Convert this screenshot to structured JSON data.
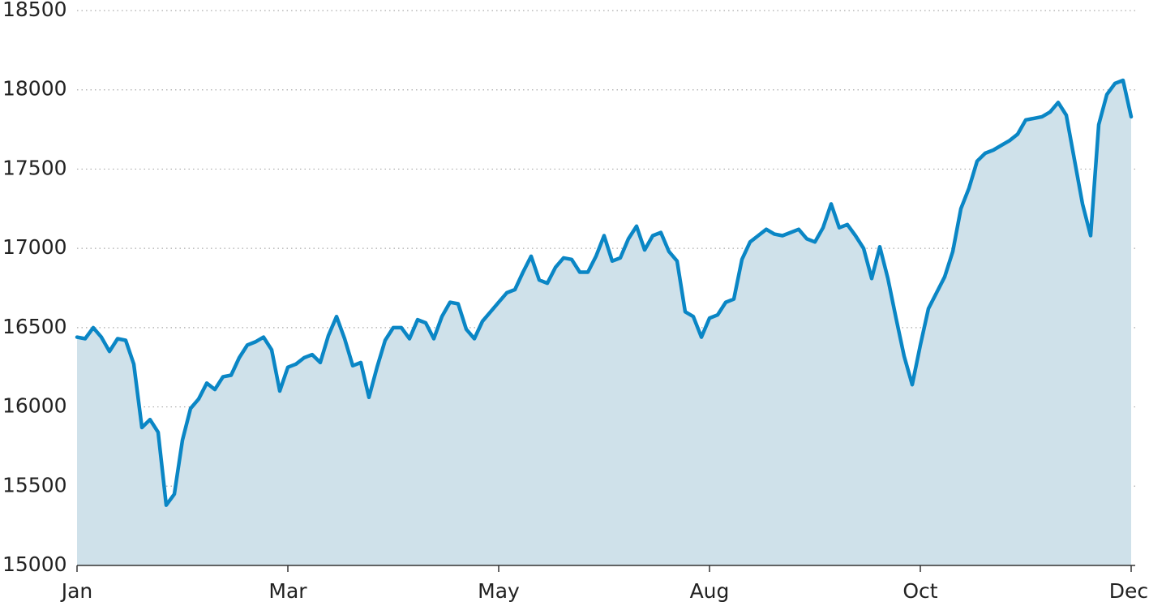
{
  "chart_data": {
    "type": "area",
    "categories": [
      "Jan",
      null,
      null,
      null,
      null,
      null,
      null,
      null,
      null,
      null,
      null,
      null,
      null,
      null,
      null,
      null,
      null,
      null,
      null,
      null,
      null,
      null,
      null,
      null,
      null,
      null,
      "Mar",
      null,
      null,
      null,
      null,
      null,
      null,
      null,
      null,
      null,
      null,
      null,
      null,
      null,
      null,
      null,
      null,
      null,
      null,
      null,
      null,
      null,
      null,
      null,
      null,
      null,
      "May",
      null,
      null,
      null,
      null,
      null,
      null,
      null,
      null,
      null,
      null,
      null,
      null,
      null,
      null,
      null,
      null,
      null,
      null,
      null,
      null,
      null,
      null,
      null,
      null,
      null,
      "Aug",
      null,
      null,
      null,
      null,
      null,
      null,
      null,
      null,
      null,
      null,
      null,
      null,
      null,
      null,
      null,
      null,
      null,
      null,
      null,
      null,
      null,
      null,
      null,
      null,
      null,
      "Oct",
      null,
      null,
      null,
      null,
      null,
      null,
      null,
      null,
      null,
      null,
      null,
      null,
      null,
      null,
      null,
      null,
      null,
      null,
      null,
      null,
      null,
      null,
      null,
      null,
      null,
      "Dec"
    ],
    "values": [
      16440,
      16430,
      16500,
      16440,
      16350,
      16430,
      16420,
      16270,
      15870,
      15920,
      15840,
      15380,
      15450,
      15790,
      15990,
      16050,
      16150,
      16110,
      16190,
      16200,
      16310,
      16390,
      16410,
      16440,
      16360,
      16100,
      16250,
      16270,
      16310,
      16330,
      16280,
      16450,
      16570,
      16430,
      16260,
      16280,
      16060,
      16250,
      16420,
      16500,
      16500,
      16430,
      16550,
      16530,
      16430,
      16570,
      16660,
      16650,
      16490,
      16430,
      16540,
      16600,
      16660,
      16720,
      16740,
      16850,
      16950,
      16800,
      16780,
      16880,
      16940,
      16930,
      16850,
      16850,
      16950,
      17080,
      16920,
      16940,
      17060,
      17140,
      16990,
      17080,
      17100,
      16980,
      16920,
      16600,
      16570,
      16440,
      16560,
      16580,
      16660,
      16680,
      16930,
      17040,
      17080,
      17120,
      17090,
      17080,
      17100,
      17120,
      17060,
      17040,
      17130,
      17280,
      17130,
      17150,
      17080,
      17000,
      16810,
      17010,
      16810,
      16560,
      16320,
      16140,
      16390,
      16620,
      16720,
      16820,
      16980,
      17250,
      17380,
      17550,
      17600,
      17620,
      17650,
      17680,
      17720,
      17810,
      17820,
      17830,
      17860,
      17920,
      17840,
      17560,
      17280,
      17080,
      17780,
      17970,
      18040,
      18060,
      17830
    ],
    "color": "#0a86c5",
    "fill_color": "#cfe1ea",
    "ylim": [
      15000,
      18500
    ],
    "yticks": [
      15000,
      15500,
      16000,
      16500,
      17000,
      17500,
      18000,
      18500
    ],
    "grid": true
  }
}
